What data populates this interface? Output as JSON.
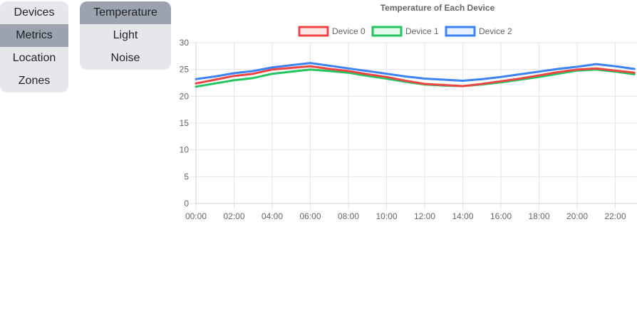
{
  "nav": {
    "items": [
      {
        "label": "Devices",
        "active": false
      },
      {
        "label": "Metrics",
        "active": true
      },
      {
        "label": "Location",
        "active": false
      },
      {
        "label": "Zones",
        "active": false
      }
    ]
  },
  "metrics_menu": {
    "items": [
      {
        "label": "Temperature",
        "active": true
      },
      {
        "label": "Light",
        "active": false
      },
      {
        "label": "Noise",
        "active": false
      }
    ]
  },
  "chart_data": {
    "type": "line",
    "title": "Temperature of Each Device",
    "xlabel": "",
    "ylabel": "",
    "ylim": [
      0,
      30
    ],
    "yticks": [
      0,
      5,
      10,
      15,
      20,
      25,
      30
    ],
    "xtick_labels": [
      "00:00",
      "02:00",
      "04:00",
      "06:00",
      "08:00",
      "10:00",
      "12:00",
      "14:00",
      "16:00",
      "18:00",
      "20:00",
      "22:00"
    ],
    "x": [
      "00:00",
      "01:00",
      "02:00",
      "03:00",
      "04:00",
      "05:00",
      "06:00",
      "07:00",
      "08:00",
      "09:00",
      "10:00",
      "11:00",
      "12:00",
      "13:00",
      "14:00",
      "15:00",
      "16:00",
      "17:00",
      "18:00",
      "19:00",
      "20:00",
      "21:00",
      "22:00",
      "23:00"
    ],
    "grid": true,
    "legend_position": "top",
    "series": [
      {
        "name": "Device 0",
        "color": "#ef4444",
        "values": [
          22.4,
          23.1,
          23.8,
          24.2,
          25.0,
          25.3,
          25.6,
          25.1,
          24.7,
          24.1,
          23.6,
          22.9,
          22.3,
          22.1,
          21.9,
          22.3,
          22.8,
          23.3,
          23.9,
          24.5,
          25.0,
          25.2,
          24.8,
          24.4
        ]
      },
      {
        "name": "Device 1",
        "color": "#22c55e",
        "values": [
          21.8,
          22.4,
          23.0,
          23.4,
          24.2,
          24.6,
          25.0,
          24.7,
          24.4,
          23.8,
          23.3,
          22.7,
          22.2,
          22.0,
          21.9,
          22.2,
          22.6,
          23.1,
          23.6,
          24.2,
          24.8,
          25.0,
          24.6,
          24.1
        ]
      },
      {
        "name": "Device 2",
        "color": "#3b82f6",
        "values": [
          23.2,
          23.7,
          24.3,
          24.7,
          25.4,
          25.8,
          26.2,
          25.7,
          25.2,
          24.7,
          24.2,
          23.7,
          23.3,
          23.1,
          22.9,
          23.2,
          23.6,
          24.1,
          24.6,
          25.1,
          25.5,
          26.0,
          25.6,
          25.1
        ]
      }
    ]
  }
}
